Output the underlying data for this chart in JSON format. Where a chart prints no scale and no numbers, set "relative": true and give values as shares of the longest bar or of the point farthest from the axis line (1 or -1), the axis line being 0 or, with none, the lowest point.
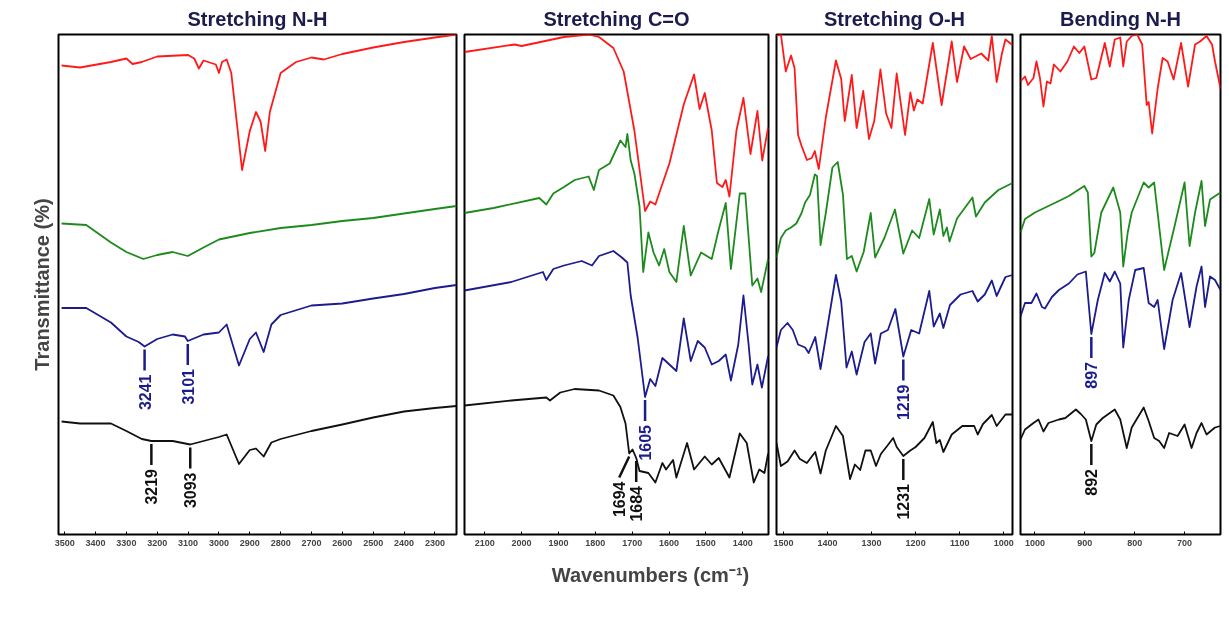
{
  "chart_data": [
    {
      "type": "line",
      "title": "Stretching N-H",
      "ylabel": "Transmittance (%)",
      "xlabel": "Wavenumbers (cm⁻¹)",
      "relative": true,
      "tick_labels": "x",
      "xlim": [
        3520,
        2230
      ],
      "xticks": [
        3500,
        3400,
        3300,
        3200,
        3100,
        3000,
        2900,
        2800,
        2700,
        2600,
        2500,
        2400,
        2300
      ],
      "series": [
        {
          "color": "#ff1a1a",
          "x": [
            3510,
            3450,
            3350,
            3300,
            3280,
            3250,
            3200,
            3100,
            3080,
            3065,
            3050,
            3010,
            3000,
            2990,
            2975,
            2960,
            2925,
            2900,
            2880,
            2865,
            2850,
            2835,
            2800,
            2750,
            2700,
            2660,
            2600,
            2500,
            2400,
            2300,
            2230
          ],
          "values": [
            0.938,
            0.934,
            0.945,
            0.952,
            0.941,
            0.945,
            0.956,
            0.959,
            0.952,
            0.932,
            0.948,
            0.94,
            0.923,
            0.945,
            0.95,
            0.923,
            0.729,
            0.807,
            0.845,
            0.826,
            0.767,
            0.845,
            0.923,
            0.945,
            0.954,
            0.95,
            0.961,
            0.974,
            0.985,
            0.994,
            1.0
          ]
        },
        {
          "color": "#1e8a1e",
          "x": [
            3510,
            3430,
            3350,
            3300,
            3245,
            3200,
            3150,
            3101,
            3050,
            3000,
            2900,
            2800,
            2700,
            2600,
            2500,
            2400,
            2300,
            2230
          ],
          "values": [
            0.622,
            0.619,
            0.584,
            0.565,
            0.551,
            0.559,
            0.565,
            0.557,
            0.574,
            0.59,
            0.603,
            0.613,
            0.619,
            0.627,
            0.633,
            0.642,
            0.651,
            0.657
          ]
        },
        {
          "color": "#1c1c8f",
          "x": [
            3510,
            3430,
            3350,
            3300,
            3260,
            3241,
            3200,
            3150,
            3110,
            3101,
            3050,
            3000,
            2975,
            2935,
            2900,
            2880,
            2855,
            2830,
            2800,
            2700,
            2600,
            2500,
            2400,
            2300,
            2230
          ],
          "values": [
            0.453,
            0.453,
            0.424,
            0.396,
            0.385,
            0.376,
            0.391,
            0.4,
            0.396,
            0.387,
            0.4,
            0.404,
            0.42,
            0.338,
            0.391,
            0.404,
            0.365,
            0.42,
            0.439,
            0.458,
            0.462,
            0.472,
            0.481,
            0.493,
            0.499
          ]
        },
        {
          "color": "#111111",
          "x": [
            3510,
            3450,
            3350,
            3300,
            3250,
            3219,
            3150,
            3093,
            3050,
            3000,
            2975,
            2935,
            2900,
            2880,
            2855,
            2830,
            2800,
            2700,
            2600,
            2500,
            2400,
            2300,
            2230
          ],
          "values": [
            0.226,
            0.222,
            0.222,
            0.207,
            0.191,
            0.187,
            0.187,
            0.18,
            0.187,
            0.195,
            0.2,
            0.141,
            0.169,
            0.172,
            0.156,
            0.184,
            0.191,
            0.207,
            0.22,
            0.234,
            0.246,
            0.253,
            0.257
          ]
        }
      ],
      "annotations": [
        {
          "text": "3241",
          "x": 3241,
          "y": 0.376
        },
        {
          "text": "3101",
          "x": 3101,
          "y": 0.387
        },
        {
          "text": "3219",
          "x": 3219,
          "y": 0.187
        },
        {
          "text": "3093",
          "x": 3093,
          "y": 0.18
        }
      ]
    },
    {
      "type": "line",
      "title": "Stretching C=O",
      "relative": true,
      "tick_labels": "x",
      "xlim": [
        2155,
        1330
      ],
      "xticks": [
        2100,
        2000,
        1900,
        1800,
        1700,
        1600,
        1500,
        1400
      ],
      "series": [
        {
          "color": "#ff1a1a",
          "x": [
            2155,
            2019,
            2000,
            1885,
            1818,
            1790,
            1751,
            1723,
            1694,
            1665,
            1651,
            1637,
            1599,
            1560,
            1532,
            1517,
            1503,
            1484,
            1470,
            1455,
            1446,
            1436,
            1417,
            1398,
            1379,
            1360,
            1347,
            1331
          ],
          "values": [
            0.965,
            0.98,
            0.977,
            0.995,
            1.0,
            0.995,
            0.973,
            0.926,
            0.808,
            0.647,
            0.666,
            0.66,
            0.742,
            0.86,
            0.92,
            0.851,
            0.883,
            0.808,
            0.703,
            0.695,
            0.709,
            0.676,
            0.808,
            0.873,
            0.761,
            0.847,
            0.748,
            0.814
          ]
        },
        {
          "color": "#1e8a1e",
          "x": [
            2155,
            2076,
            1952,
            1933,
            1914,
            1885,
            1856,
            1818,
            1804,
            1790,
            1761,
            1732,
            1718,
            1713,
            1704,
            1694,
            1680,
            1670,
            1656,
            1642,
            1627,
            1613,
            1599,
            1580,
            1560,
            1541,
            1513,
            1484,
            1465,
            1446,
            1432,
            1408,
            1393,
            1374,
            1360,
            1350,
            1331
          ],
          "values": [
            0.643,
            0.653,
            0.673,
            0.66,
            0.682,
            0.695,
            0.709,
            0.716,
            0.689,
            0.729,
            0.742,
            0.788,
            0.775,
            0.801,
            0.748,
            0.722,
            0.656,
            0.525,
            0.604,
            0.564,
            0.538,
            0.571,
            0.525,
            0.505,
            0.617,
            0.518,
            0.564,
            0.551,
            0.61,
            0.663,
            0.531,
            0.682,
            0.682,
            0.498,
            0.512,
            0.485,
            0.551
          ]
        },
        {
          "color": "#1c1c8f",
          "x": [
            2155,
            2028,
            1942,
            1933,
            1914,
            1885,
            1837,
            1809,
            1790,
            1751,
            1728,
            1713,
            1704,
            1685,
            1665,
            1651,
            1637,
            1618,
            1599,
            1580,
            1560,
            1541,
            1522,
            1503,
            1484,
            1465,
            1446,
            1432,
            1412,
            1398,
            1384,
            1374,
            1360,
            1348,
            1331
          ],
          "values": [
            0.488,
            0.505,
            0.525,
            0.509,
            0.531,
            0.538,
            0.547,
            0.538,
            0.557,
            0.567,
            0.554,
            0.544,
            0.478,
            0.393,
            0.275,
            0.311,
            0.297,
            0.353,
            0.34,
            0.327,
            0.432,
            0.347,
            0.387,
            0.374,
            0.34,
            0.347,
            0.36,
            0.308,
            0.38,
            0.478,
            0.38,
            0.3,
            0.34,
            0.294,
            0.357
          ]
        },
        {
          "color": "#111111",
          "x": [
            2155,
            2028,
            1933,
            1923,
            1895,
            1856,
            1790,
            1751,
            1732,
            1718,
            1708,
            1699,
            1689,
            1680,
            1656,
            1637,
            1618,
            1608,
            1589,
            1580,
            1551,
            1532,
            1503,
            1484,
            1465,
            1436,
            1408,
            1389,
            1370,
            1355,
            1341,
            1331
          ],
          "values": [
            0.258,
            0.268,
            0.274,
            0.268,
            0.284,
            0.291,
            0.288,
            0.278,
            0.255,
            0.222,
            0.162,
            0.17,
            0.153,
            0.127,
            0.123,
            0.104,
            0.143,
            0.13,
            0.149,
            0.114,
            0.183,
            0.13,
            0.156,
            0.14,
            0.153,
            0.114,
            0.202,
            0.183,
            0.104,
            0.13,
            0.123,
            0.162
          ]
        }
      ],
      "annotations": [
        {
          "text": "1605",
          "x": 1665,
          "y": 0.275
        },
        {
          "text": "1694",
          "x": 1708,
          "y": 0.162
        },
        {
          "text": "1684",
          "x": 1689,
          "y": 0.153
        }
      ]
    },
    {
      "type": "line",
      "title": "Stretching O-H",
      "relative": true,
      "tick_labels": "x",
      "xlim": [
        1516,
        980
      ],
      "xticks": [
        1500,
        1400,
        1300,
        1200,
        1100,
        1000
      ],
      "series": [
        {
          "color": "#ff1a1a",
          "x": [
            1516,
            1506,
            1495,
            1483,
            1475,
            1467,
            1459,
            1447,
            1436,
            1429,
            1420,
            1404,
            1381,
            1369,
            1361,
            1345,
            1334,
            1319,
            1306,
            1294,
            1280,
            1267,
            1255,
            1243,
            1224,
            1212,
            1204,
            1196,
            1184,
            1161,
            1141,
            1118,
            1106,
            1090,
            1075,
            1051,
            1035,
            1027,
            1016,
            1004,
            996,
            980
          ],
          "values": [
            0.997,
            1.0,
            0.926,
            0.958,
            0.933,
            0.799,
            0.777,
            0.749,
            0.753,
            0.767,
            0.731,
            0.834,
            0.948,
            0.911,
            0.827,
            0.919,
            0.813,
            0.887,
            0.791,
            0.827,
            0.93,
            0.842,
            0.813,
            0.922,
            0.799,
            0.884,
            0.848,
            0.87,
            0.862,
            0.983,
            0.859,
            0.986,
            0.905,
            0.976,
            0.951,
            0.962,
            0.948,
            0.997,
            0.905,
            0.962,
            0.99,
            0.979
          ]
        },
        {
          "color": "#1e8a1e",
          "x": [
            1516,
            1506,
            1495,
            1483,
            1471,
            1459,
            1451,
            1440,
            1429,
            1424,
            1416,
            1404,
            1389,
            1377,
            1365,
            1356,
            1345,
            1334,
            1318,
            1302,
            1292,
            1271,
            1247,
            1228,
            1208,
            1192,
            1169,
            1159,
            1145,
            1137,
            1129,
            1123,
            1106,
            1071,
            1063,
            1043,
            1012,
            980
          ],
          "values": [
            0.554,
            0.593,
            0.608,
            0.614,
            0.622,
            0.643,
            0.664,
            0.679,
            0.72,
            0.717,
            0.579,
            0.643,
            0.734,
            0.745,
            0.679,
            0.551,
            0.557,
            0.526,
            0.565,
            0.643,
            0.554,
            0.593,
            0.65,
            0.562,
            0.608,
            0.593,
            0.671,
            0.6,
            0.65,
            0.597,
            0.614,
            0.586,
            0.632,
            0.674,
            0.636,
            0.664,
            0.689,
            0.703
          ]
        },
        {
          "color": "#1c1c8f",
          "x": [
            1516,
            1506,
            1491,
            1479,
            1467,
            1451,
            1443,
            1428,
            1416,
            1404,
            1381,
            1369,
            1357,
            1345,
            1334,
            1316,
            1302,
            1292,
            1279,
            1263,
            1246,
            1228,
            1210,
            1192,
            1169,
            1159,
            1145,
            1137,
            1122,
            1098,
            1071,
            1059,
            1043,
            1027,
            1016,
            996,
            980
          ],
          "values": [
            0.374,
            0.409,
            0.423,
            0.409,
            0.38,
            0.374,
            0.363,
            0.395,
            0.331,
            0.395,
            0.519,
            0.466,
            0.334,
            0.366,
            0.32,
            0.385,
            0.402,
            0.342,
            0.402,
            0.409,
            0.451,
            0.356,
            0.409,
            0.402,
            0.487,
            0.416,
            0.442,
            0.413,
            0.459,
            0.48,
            0.487,
            0.466,
            0.48,
            0.508,
            0.477,
            0.515,
            0.519
          ]
        },
        {
          "color": "#111111",
          "x": [
            1516,
            1506,
            1491,
            1475,
            1463,
            1447,
            1428,
            1416,
            1404,
            1381,
            1365,
            1349,
            1338,
            1326,
            1314,
            1302,
            1290,
            1279,
            1263,
            1251,
            1243,
            1228,
            1212,
            1200,
            1180,
            1161,
            1153,
            1145,
            1137,
            1118,
            1094,
            1067,
            1059,
            1047,
            1027,
            1016,
            996,
            980
          ],
          "values": [
            0.183,
            0.137,
            0.146,
            0.168,
            0.151,
            0.143,
            0.165,
            0.122,
            0.168,
            0.217,
            0.197,
            0.111,
            0.14,
            0.129,
            0.168,
            0.168,
            0.137,
            0.161,
            0.179,
            0.193,
            0.175,
            0.157,
            0.168,
            0.175,
            0.193,
            0.225,
            0.183,
            0.189,
            0.165,
            0.2,
            0.217,
            0.217,
            0.2,
            0.221,
            0.239,
            0.217,
            0.24,
            0.24
          ]
        }
      ],
      "annotations": [
        {
          "text": "1219",
          "x": 1228,
          "y": 0.356
        },
        {
          "text": "1231",
          "x": 1228,
          "y": 0.157
        }
      ]
    },
    {
      "type": "line",
      "title": "Bending N-H",
      "relative": true,
      "tick_labels": "x",
      "xlim": [
        1029,
        628
      ],
      "xticks": [
        1000,
        900,
        800,
        700
      ],
      "series": [
        {
          "color": "#ff1a1a",
          "x": [
            1029,
            1020,
            1014,
            1003,
            997,
            990,
            983,
            976,
            969,
            962,
            949,
            935,
            922,
            911,
            901,
            887,
            877,
            860,
            850,
            840,
            829,
            823,
            816,
            806,
            795,
            785,
            776,
            772,
            765,
            754,
            744,
            734,
            722,
            707,
            693,
            679,
            669,
            656,
            645,
            639,
            628
          ],
          "values": [
            0.906,
            0.916,
            0.899,
            0.913,
            0.946,
            0.913,
            0.856,
            0.906,
            0.902,
            0.94,
            0.926,
            0.946,
            0.976,
            0.963,
            0.976,
            0.91,
            0.913,
            0.983,
            0.936,
            0.99,
            0.994,
            0.936,
            0.986,
            0.997,
            1.0,
            0.98,
            0.859,
            0.865,
            0.802,
            0.892,
            0.953,
            0.946,
            0.91,
            0.983,
            0.896,
            0.98,
            0.986,
            0.997,
            0.98,
            0.946,
            0.892
          ]
        },
        {
          "color": "#1e8a1e",
          "x": [
            1029,
            1020,
            1000,
            973,
            952,
            932,
            915,
            901,
            894,
            887,
            881,
            867,
            843,
            829,
            823,
            814,
            806,
            782,
            772,
            761,
            741,
            720,
            700,
            690,
            679,
            666,
            659,
            649,
            628
          ],
          "values": [
            0.604,
            0.631,
            0.644,
            0.657,
            0.667,
            0.677,
            0.688,
            0.697,
            0.684,
            0.556,
            0.563,
            0.644,
            0.694,
            0.644,
            0.536,
            0.604,
            0.644,
            0.704,
            0.694,
            0.704,
            0.529,
            0.617,
            0.704,
            0.577,
            0.644,
            0.707,
            0.617,
            0.67,
            0.684
          ]
        },
        {
          "color": "#1c1c8f",
          "x": [
            1029,
            1020,
            1007,
            997,
            986,
            980,
            966,
            952,
            932,
            915,
            898,
            887,
            874,
            860,
            850,
            840,
            829,
            823,
            812,
            799,
            782,
            772,
            761,
            754,
            741,
            724,
            707,
            690,
            676,
            666,
            659,
            649,
            639,
            628
          ],
          "values": [
            0.436,
            0.463,
            0.463,
            0.482,
            0.455,
            0.452,
            0.475,
            0.489,
            0.502,
            0.52,
            0.526,
            0.401,
            0.469,
            0.523,
            0.506,
            0.526,
            0.502,
            0.374,
            0.469,
            0.529,
            0.533,
            0.463,
            0.455,
            0.469,
            0.371,
            0.469,
            0.523,
            0.415,
            0.496,
            0.536,
            0.455,
            0.516,
            0.509,
            0.489
          ]
        },
        {
          "color": "#111111",
          "x": [
            1029,
            1020,
            1003,
            993,
            983,
            973,
            952,
            939,
            918,
            908,
            898,
            887,
            877,
            864,
            840,
            829,
            816,
            806,
            782,
            772,
            761,
            751,
            741,
            731,
            714,
            700,
            686,
            676,
            666,
            656,
            639,
            628
          ],
          "values": [
            0.19,
            0.21,
            0.223,
            0.23,
            0.206,
            0.223,
            0.23,
            0.233,
            0.25,
            0.241,
            0.23,
            0.187,
            0.22,
            0.233,
            0.25,
            0.23,
            0.173,
            0.214,
            0.254,
            0.227,
            0.193,
            0.187,
            0.173,
            0.203,
            0.197,
            0.22,
            0.173,
            0.203,
            0.223,
            0.2,
            0.214,
            0.217
          ]
        }
      ],
      "annotations": [
        {
          "text": "897",
          "x": 887,
          "y": 0.401
        },
        {
          "text": "892",
          "x": 887,
          "y": 0.187
        }
      ]
    }
  ]
}
